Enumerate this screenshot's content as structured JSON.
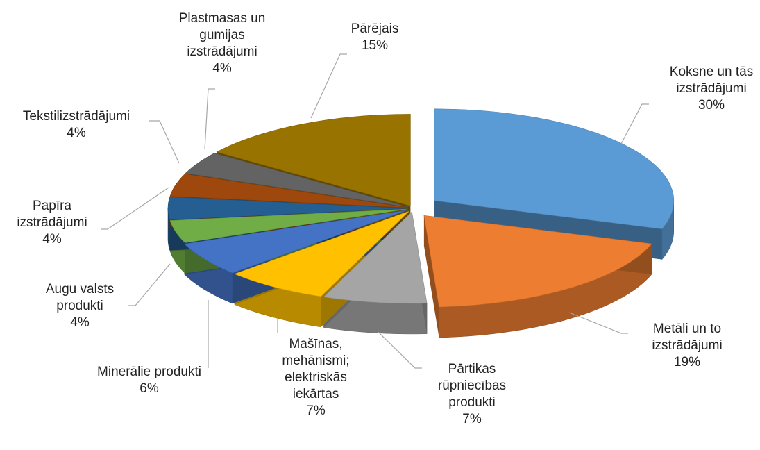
{
  "chart_data": {
    "type": "pie",
    "categories": [
      "Koksne un tās izstrādājumi",
      "Metāli un to izstrādājumi",
      "Pārtikas rūpniecības produkti",
      "Mašīnas, mehānismi; elektriskās iekārtas",
      "Minerālie produkti",
      "Augu valsts produkti",
      "Papīra izstrādājumi",
      "Tekstilizstrādājumi",
      "Plastmasas un gumijas izstrādājumi",
      "Pārējais"
    ],
    "values": [
      30,
      19,
      7,
      7,
      6,
      4,
      4,
      4,
      4,
      15
    ],
    "value_labels": [
      "30%",
      "19%",
      "7%",
      "7%",
      "6%",
      "4%",
      "4%",
      "4%",
      "4%",
      "15%"
    ],
    "colors": [
      "#5b9bd5",
      "#ed7d31",
      "#a5a5a5",
      "#ffc000",
      "#4472c4",
      "#70ad47",
      "#255e91",
      "#9e480e",
      "#636363",
      "#997300"
    ]
  }
}
